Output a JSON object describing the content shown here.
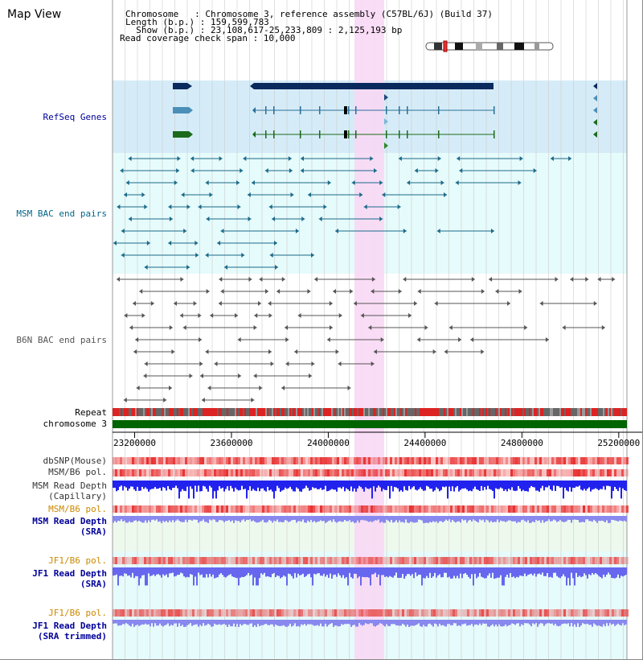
{
  "page": {
    "title": "Map View"
  },
  "info": {
    "chromosome_line": "Chromosome   : Chromosome 3, reference assembly (C57BL/6J) (Build 37)",
    "length_line": "Length (b.p.) : 159,599,783",
    "show_line": "  Show (b.p.) : 23,108,617-25,233,809 : 2,125,193 bp",
    "coverage_line": "Read coverage check span : 10,000"
  },
  "tracks": {
    "refseq": "RefSeq Genes",
    "msm_bac": "MSM BAC end pairs",
    "b6n_bac": "B6N BAC end pairs",
    "repeat": "Repeat",
    "chromosome": "chromosome 3",
    "dbsnp": "dbSNP(Mouse)",
    "msm_b6_pol": "MSM/B6 pol.",
    "msm_depth_cap": "MSM Read Depth\n(Capillary)",
    "msm_b6_pol2": "MSM/B6 pol.",
    "msm_depth_sra": "MSM Read Depth\n(SRA)",
    "jf1_b6_pol": "JF1/B6 pol.",
    "jf1_depth_sra": "JF1 Read Depth\n(SRA)",
    "jf1_b6_pol2": "JF1/B6 pol.",
    "jf1_depth_trim": "JF1 Read Depth\n(SRA trimmed)"
  },
  "axis": {
    "ticks": [
      "23200000",
      "23600000",
      "24000000",
      "24400000",
      "24800000",
      "25200000"
    ],
    "start_bp": 23108617,
    "end_bp": 25233809
  },
  "colors": {
    "refseq_bg": "#d5ecf8",
    "msm_bg": "#e6fbfb",
    "highlight": "#f8d8f4",
    "gene_dark": "#0a2a5e",
    "gene_blue": "#4a8fb8",
    "gene_green": "#1a6a1a",
    "msm_pair": "#1a6a8a",
    "b6n_pair": "#555555",
    "chromosome": "#006400",
    "label_blue": "#000099",
    "label_teal": "#006688",
    "label_gray": "#555555",
    "label_orange": "#cc8800"
  }
}
